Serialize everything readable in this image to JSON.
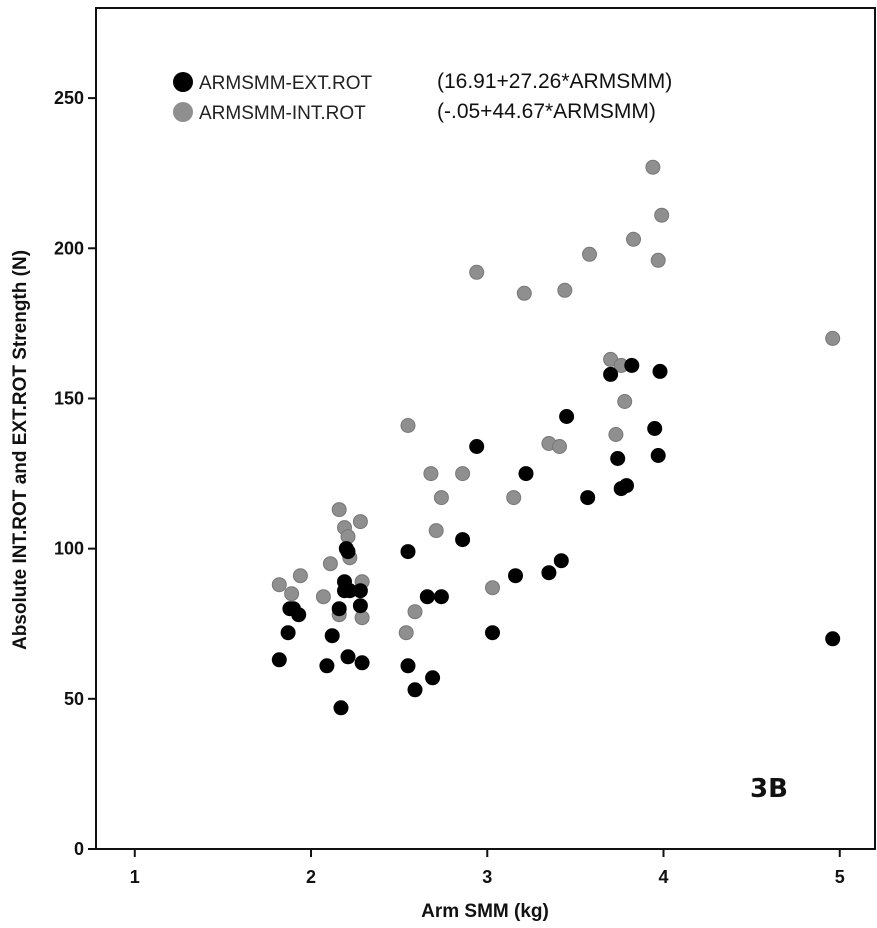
{
  "chart_data": {
    "type": "scatter",
    "xlabel": "Arm SMM (kg)",
    "ylabel": "Absolute INT.ROT and EXT.ROT Strength (N)",
    "xlim": [
      0.78,
      5.2
    ],
    "ylim": [
      0,
      280
    ],
    "x_ticks": [
      "1",
      "2",
      "3",
      "4",
      "5"
    ],
    "y_ticks": [
      "0",
      "50",
      "100",
      "150",
      "200",
      "250"
    ],
    "grid": false,
    "legend_position": "top-left",
    "panel_label": "3B",
    "series": [
      {
        "name": "ARMSMM-EXT.ROT",
        "equation": "(16.91+27.26*ARMSMM)",
        "color": "#000000",
        "points": [
          [
            1.82,
            63
          ],
          [
            1.87,
            72
          ],
          [
            1.88,
            80
          ],
          [
            1.9,
            80
          ],
          [
            1.93,
            78
          ],
          [
            2.09,
            61
          ],
          [
            2.12,
            71
          ],
          [
            2.16,
            80
          ],
          [
            2.17,
            47
          ],
          [
            2.19,
            86
          ],
          [
            2.19,
            89
          ],
          [
            2.2,
            100
          ],
          [
            2.21,
            99
          ],
          [
            2.21,
            64
          ],
          [
            2.22,
            86
          ],
          [
            2.28,
            81
          ],
          [
            2.28,
            86
          ],
          [
            2.29,
            62
          ],
          [
            2.55,
            61
          ],
          [
            2.55,
            99
          ],
          [
            2.59,
            53
          ],
          [
            2.66,
            84
          ],
          [
            2.69,
            57
          ],
          [
            2.74,
            84
          ],
          [
            2.86,
            103
          ],
          [
            2.94,
            134
          ],
          [
            3.03,
            72
          ],
          [
            3.16,
            91
          ],
          [
            3.22,
            125
          ],
          [
            3.35,
            92
          ],
          [
            3.42,
            96
          ],
          [
            3.45,
            144
          ],
          [
            3.57,
            117
          ],
          [
            3.7,
            158
          ],
          [
            3.74,
            130
          ],
          [
            3.76,
            120
          ],
          [
            3.79,
            121
          ],
          [
            3.82,
            161
          ],
          [
            3.95,
            140
          ],
          [
            3.97,
            131
          ],
          [
            3.98,
            159
          ],
          [
            4.96,
            70
          ]
        ]
      },
      {
        "name": "ARMSMM-INT.ROT",
        "equation": "(-.05+44.67*ARMSMM)",
        "color": "#8f8f8f",
        "points": [
          [
            1.82,
            88
          ],
          [
            1.89,
            85
          ],
          [
            1.94,
            91
          ],
          [
            2.07,
            84
          ],
          [
            2.11,
            95
          ],
          [
            2.16,
            78
          ],
          [
            2.16,
            113
          ],
          [
            2.19,
            107
          ],
          [
            2.21,
            104
          ],
          [
            2.22,
            97
          ],
          [
            2.28,
            109
          ],
          [
            2.29,
            89
          ],
          [
            2.29,
            77
          ],
          [
            2.54,
            72
          ],
          [
            2.55,
            141
          ],
          [
            2.59,
            79
          ],
          [
            2.68,
            125
          ],
          [
            2.71,
            106
          ],
          [
            2.74,
            117
          ],
          [
            2.86,
            125
          ],
          [
            2.94,
            192
          ],
          [
            3.03,
            87
          ],
          [
            3.15,
            117
          ],
          [
            3.21,
            185
          ],
          [
            3.35,
            135
          ],
          [
            3.41,
            134
          ],
          [
            3.44,
            186
          ],
          [
            3.58,
            198
          ],
          [
            3.7,
            163
          ],
          [
            3.73,
            138
          ],
          [
            3.76,
            161
          ],
          [
            3.78,
            149
          ],
          [
            3.83,
            203
          ],
          [
            3.94,
            227
          ],
          [
            3.97,
            196
          ],
          [
            3.99,
            211
          ],
          [
            4.96,
            170
          ]
        ]
      }
    ]
  }
}
